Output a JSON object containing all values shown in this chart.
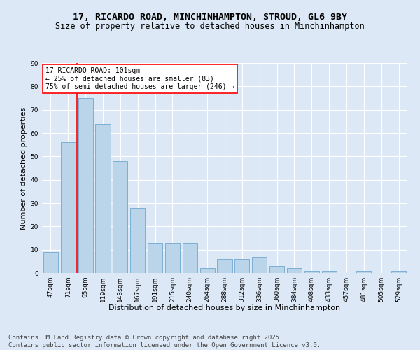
{
  "title1": "17, RICARDO ROAD, MINCHINHAMPTON, STROUD, GL6 9BY",
  "title2": "Size of property relative to detached houses in Minchinhampton",
  "xlabel": "Distribution of detached houses by size in Minchinhampton",
  "ylabel": "Number of detached properties",
  "categories": [
    "47sqm",
    "71sqm",
    "95sqm",
    "119sqm",
    "143sqm",
    "167sqm",
    "191sqm",
    "215sqm",
    "240sqm",
    "264sqm",
    "288sqm",
    "312sqm",
    "336sqm",
    "360sqm",
    "384sqm",
    "408sqm",
    "433sqm",
    "457sqm",
    "481sqm",
    "505sqm",
    "529sqm"
  ],
  "values": [
    9,
    56,
    75,
    64,
    48,
    28,
    13,
    13,
    13,
    2,
    6,
    6,
    7,
    3,
    2,
    1,
    1,
    0,
    1,
    0,
    1
  ],
  "bar_color": "#bad4ea",
  "bar_edge_color": "#7bafd4",
  "figure_bg": "#dce8f5",
  "plot_bg": "#dce8f5",
  "grid_color": "#ffffff",
  "red_line_index": 2,
  "annotation_lines": [
    "17 RICARDO ROAD: 101sqm",
    "← 25% of detached houses are smaller (83)",
    "75% of semi-detached houses are larger (246) →"
  ],
  "ylim": [
    0,
    90
  ],
  "yticks": [
    0,
    10,
    20,
    30,
    40,
    50,
    60,
    70,
    80,
    90
  ],
  "footer": "Contains HM Land Registry data © Crown copyright and database right 2025.\nContains public sector information licensed under the Open Government Licence v3.0.",
  "title_fontsize": 9.5,
  "subtitle_fontsize": 8.5,
  "axis_label_fontsize": 8,
  "tick_fontsize": 6.5,
  "annotation_fontsize": 7,
  "footer_fontsize": 6.5
}
